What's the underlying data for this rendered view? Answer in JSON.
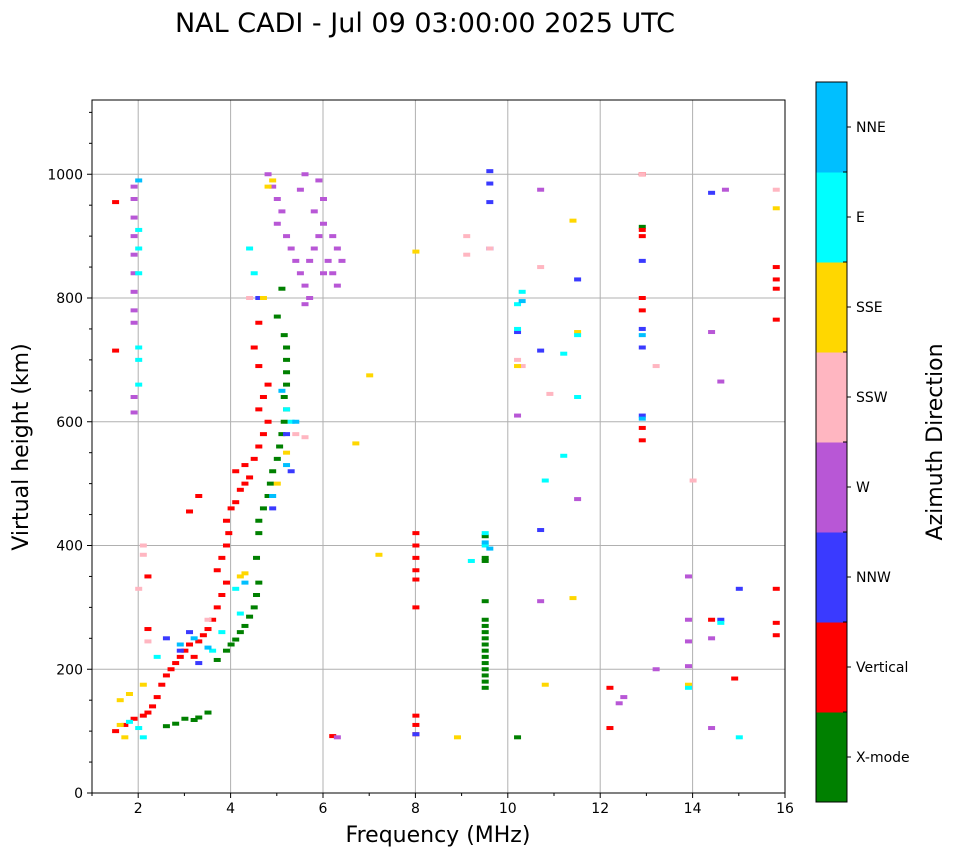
{
  "chart_data": {
    "type": "scatter",
    "title": "NAL CADI - Jul 09 03:00:00 2025 UTC",
    "xlabel": "Frequency (MHz)",
    "ylabel": "Virtual height (km)",
    "xlim": [
      1,
      16
    ],
    "ylim": [
      0,
      1120
    ],
    "xticks": [
      2,
      4,
      6,
      8,
      10,
      12,
      14,
      16
    ],
    "yticks": [
      0,
      200,
      400,
      600,
      800,
      1000
    ],
    "grid": true,
    "colorbar": {
      "label": "Azimuth Direction",
      "categories": [
        {
          "name": "X-mode",
          "color": "#008000"
        },
        {
          "name": "Vertical",
          "color": "#ff0000"
        },
        {
          "name": "NNW",
          "color": "#3a3aff"
        },
        {
          "name": "W",
          "color": "#b857d6"
        },
        {
          "name": "SSW",
          "color": "#ffb6c1"
        },
        {
          "name": "SSE",
          "color": "#ffd700"
        },
        {
          "name": "E",
          "color": "#00ffff"
        },
        {
          "name": "NNE",
          "color": "#00bfff"
        }
      ]
    },
    "series": [
      {
        "name": "X-mode",
        "points": [
          [
            3.2,
            118
          ],
          [
            3.3,
            122
          ],
          [
            3.5,
            130
          ],
          [
            3.7,
            215
          ],
          [
            3.9,
            230
          ],
          [
            4.0,
            240
          ],
          [
            4.1,
            248
          ],
          [
            4.2,
            260
          ],
          [
            4.3,
            270
          ],
          [
            4.4,
            285
          ],
          [
            4.5,
            300
          ],
          [
            4.55,
            320
          ],
          [
            4.6,
            340
          ],
          [
            4.55,
            380
          ],
          [
            4.6,
            420
          ],
          [
            4.6,
            440
          ],
          [
            4.7,
            460
          ],
          [
            4.8,
            480
          ],
          [
            4.85,
            500
          ],
          [
            4.9,
            520
          ],
          [
            5.0,
            540
          ],
          [
            5.05,
            560
          ],
          [
            5.1,
            580
          ],
          [
            5.15,
            600
          ],
          [
            5.2,
            620
          ],
          [
            5.15,
            640
          ],
          [
            5.2,
            660
          ],
          [
            5.2,
            680
          ],
          [
            5.2,
            700
          ],
          [
            5.2,
            720
          ],
          [
            5.15,
            740
          ],
          [
            5.0,
            770
          ],
          [
            5.1,
            815
          ],
          [
            12.9,
            915
          ],
          [
            9.5,
            170
          ],
          [
            9.5,
            180
          ],
          [
            9.5,
            190
          ],
          [
            9.5,
            200
          ],
          [
            9.5,
            210
          ],
          [
            9.5,
            220
          ],
          [
            9.5,
            230
          ],
          [
            9.5,
            240
          ],
          [
            9.5,
            250
          ],
          [
            9.5,
            260
          ],
          [
            9.5,
            270
          ],
          [
            9.5,
            280
          ],
          [
            9.5,
            310
          ],
          [
            9.5,
            375
          ],
          [
            9.5,
            380
          ],
          [
            9.5,
            415
          ],
          [
            10.2,
            90
          ],
          [
            3.0,
            120
          ],
          [
            2.8,
            112
          ],
          [
            2.6,
            108
          ]
        ]
      },
      {
        "name": "Vertical",
        "points": [
          [
            1.5,
            100
          ],
          [
            1.7,
            110
          ],
          [
            1.9,
            120
          ],
          [
            2.1,
            125
          ],
          [
            2.2,
            130
          ],
          [
            2.3,
            140
          ],
          [
            2.4,
            155
          ],
          [
            2.5,
            175
          ],
          [
            2.6,
            190
          ],
          [
            2.7,
            200
          ],
          [
            2.8,
            210
          ],
          [
            2.9,
            220
          ],
          [
            3.0,
            230
          ],
          [
            3.1,
            240
          ],
          [
            3.2,
            220
          ],
          [
            3.3,
            245
          ],
          [
            3.4,
            255
          ],
          [
            3.5,
            265
          ],
          [
            3.6,
            280
          ],
          [
            3.7,
            300
          ],
          [
            3.8,
            320
          ],
          [
            3.9,
            340
          ],
          [
            3.7,
            360
          ],
          [
            3.8,
            380
          ],
          [
            3.9,
            400
          ],
          [
            3.95,
            420
          ],
          [
            3.9,
            440
          ],
          [
            4.0,
            460
          ],
          [
            4.1,
            470
          ],
          [
            4.2,
            490
          ],
          [
            4.3,
            500
          ],
          [
            4.4,
            510
          ],
          [
            4.1,
            520
          ],
          [
            4.3,
            530
          ],
          [
            4.5,
            540
          ],
          [
            4.6,
            560
          ],
          [
            4.7,
            580
          ],
          [
            4.8,
            600
          ],
          [
            4.6,
            620
          ],
          [
            4.7,
            640
          ],
          [
            4.8,
            660
          ],
          [
            4.6,
            690
          ],
          [
            4.5,
            720
          ],
          [
            4.6,
            760
          ],
          [
            8.0,
            345
          ],
          [
            8.0,
            360
          ],
          [
            8.0,
            380
          ],
          [
            8.0,
            400
          ],
          [
            8.0,
            420
          ],
          [
            8.0,
            300
          ],
          [
            8.0,
            95
          ],
          [
            8.0,
            110
          ],
          [
            8.0,
            125
          ],
          [
            12.9,
            570
          ],
          [
            12.9,
            590
          ],
          [
            12.9,
            780
          ],
          [
            12.9,
            800
          ],
          [
            12.9,
            900
          ],
          [
            12.9,
            910
          ],
          [
            12.9,
            1000
          ],
          [
            12.2,
            105
          ],
          [
            12.2,
            170
          ],
          [
            14.4,
            280
          ],
          [
            14.9,
            185
          ],
          [
            15.8,
            255
          ],
          [
            15.8,
            275
          ],
          [
            15.8,
            330
          ],
          [
            15.8,
            765
          ],
          [
            15.8,
            815
          ],
          [
            15.8,
            830
          ],
          [
            15.8,
            850
          ],
          [
            6.2,
            92
          ],
          [
            1.5,
            955
          ],
          [
            1.5,
            715
          ],
          [
            3.1,
            455
          ],
          [
            3.3,
            480
          ],
          [
            2.2,
            350
          ],
          [
            2.2,
            265
          ]
        ]
      },
      {
        "name": "NNW",
        "points": [
          [
            2.6,
            250
          ],
          [
            2.9,
            230
          ],
          [
            3.1,
            260
          ],
          [
            3.3,
            210
          ],
          [
            4.6,
            800
          ],
          [
            4.9,
            460
          ],
          [
            5.3,
            520
          ],
          [
            5.2,
            580
          ],
          [
            9.6,
            1005
          ],
          [
            9.6,
            985
          ],
          [
            9.6,
            955
          ],
          [
            9.6,
            880
          ],
          [
            10.2,
            745
          ],
          [
            10.7,
            425
          ],
          [
            10.7,
            715
          ],
          [
            11.5,
            830
          ],
          [
            12.9,
            720
          ],
          [
            12.9,
            750
          ],
          [
            12.9,
            860
          ],
          [
            12.9,
            610
          ],
          [
            14.4,
            970
          ],
          [
            14.6,
            280
          ],
          [
            15.0,
            330
          ],
          [
            8.0,
            95
          ]
        ]
      },
      {
        "name": "W",
        "points": [
          [
            1.9,
            980
          ],
          [
            1.9,
            960
          ],
          [
            1.9,
            930
          ],
          [
            1.9,
            900
          ],
          [
            1.9,
            870
          ],
          [
            1.9,
            840
          ],
          [
            1.9,
            810
          ],
          [
            1.9,
            780
          ],
          [
            1.9,
            760
          ],
          [
            1.9,
            640
          ],
          [
            1.9,
            615
          ],
          [
            4.8,
            1000
          ],
          [
            4.9,
            980
          ],
          [
            5.0,
            960
          ],
          [
            5.1,
            940
          ],
          [
            5.0,
            920
          ],
          [
            5.2,
            900
          ],
          [
            5.3,
            880
          ],
          [
            5.4,
            860
          ],
          [
            5.5,
            840
          ],
          [
            5.6,
            820
          ],
          [
            5.7,
            800
          ],
          [
            5.8,
            880
          ],
          [
            5.9,
            900
          ],
          [
            6.0,
            920
          ],
          [
            6.1,
            860
          ],
          [
            6.2,
            840
          ],
          [
            6.3,
            820
          ],
          [
            6.0,
            960
          ],
          [
            5.9,
            990
          ],
          [
            5.6,
            1000
          ],
          [
            5.5,
            975
          ],
          [
            5.8,
            940
          ],
          [
            6.2,
            900
          ],
          [
            6.3,
            880
          ],
          [
            5.7,
            860
          ],
          [
            6.0,
            840
          ],
          [
            6.4,
            860
          ],
          [
            5.6,
            790
          ],
          [
            10.2,
            610
          ],
          [
            10.7,
            310
          ],
          [
            10.7,
            975
          ],
          [
            11.5,
            475
          ],
          [
            13.9,
            205
          ],
          [
            13.9,
            245
          ],
          [
            13.9,
            280
          ],
          [
            13.9,
            350
          ],
          [
            14.6,
            665
          ],
          [
            14.4,
            745
          ],
          [
            14.4,
            250
          ],
          [
            14.4,
            105
          ],
          [
            14.7,
            975
          ],
          [
            13.2,
            200
          ],
          [
            12.4,
            145
          ],
          [
            12.5,
            155
          ],
          [
            6.3,
            90
          ]
        ]
      },
      {
        "name": "SSW",
        "points": [
          [
            2.1,
            400
          ],
          [
            2.1,
            385
          ],
          [
            2.0,
            330
          ],
          [
            2.2,
            245
          ],
          [
            3.5,
            280
          ],
          [
            4.4,
            800
          ],
          [
            5.4,
            580
          ],
          [
            5.6,
            575
          ],
          [
            9.1,
            870
          ],
          [
            9.1,
            900
          ],
          [
            9.6,
            880
          ],
          [
            10.2,
            700
          ],
          [
            10.3,
            690
          ],
          [
            10.7,
            850
          ],
          [
            10.9,
            645
          ],
          [
            13.2,
            690
          ],
          [
            14.0,
            505
          ],
          [
            15.8,
            975
          ],
          [
            12.9,
            1000
          ]
        ]
      },
      {
        "name": "SSE",
        "points": [
          [
            1.6,
            110
          ],
          [
            1.7,
            90
          ],
          [
            1.6,
            150
          ],
          [
            1.8,
            160
          ],
          [
            2.1,
            175
          ],
          [
            4.2,
            350
          ],
          [
            4.3,
            355
          ],
          [
            4.7,
            800
          ],
          [
            4.8,
            980
          ],
          [
            4.9,
            990
          ],
          [
            5.2,
            550
          ],
          [
            5.0,
            500
          ],
          [
            6.7,
            565
          ],
          [
            7.0,
            675
          ],
          [
            7.2,
            385
          ],
          [
            8.0,
            875
          ],
          [
            8.9,
            90
          ],
          [
            10.2,
            690
          ],
          [
            10.8,
            175
          ],
          [
            11.4,
            315
          ],
          [
            11.4,
            925
          ],
          [
            11.5,
            745
          ],
          [
            13.9,
            175
          ],
          [
            15.8,
            945
          ]
        ]
      },
      {
        "name": "E",
        "points": [
          [
            1.8,
            115
          ],
          [
            2.0,
            105
          ],
          [
            2.1,
            90
          ],
          [
            2.4,
            220
          ],
          [
            3.6,
            230
          ],
          [
            3.8,
            260
          ],
          [
            4.1,
            330
          ],
          [
            4.2,
            290
          ],
          [
            4.4,
            880
          ],
          [
            4.5,
            840
          ],
          [
            5.2,
            620
          ],
          [
            5.3,
            600
          ],
          [
            9.5,
            420
          ],
          [
            9.5,
            400
          ],
          [
            9.2,
            375
          ],
          [
            10.2,
            790
          ],
          [
            10.3,
            810
          ],
          [
            10.2,
            750
          ],
          [
            10.8,
            505
          ],
          [
            11.2,
            545
          ],
          [
            11.2,
            710
          ],
          [
            11.5,
            640
          ],
          [
            11.5,
            740
          ],
          [
            13.9,
            170
          ],
          [
            14.6,
            275
          ],
          [
            15.0,
            90
          ],
          [
            2.0,
            910
          ],
          [
            2.0,
            880
          ],
          [
            2.0,
            840
          ],
          [
            2.0,
            720
          ],
          [
            2.0,
            700
          ],
          [
            2.0,
            660
          ]
        ]
      },
      {
        "name": "NNE",
        "points": [
          [
            2.9,
            240
          ],
          [
            3.2,
            250
          ],
          [
            3.5,
            235
          ],
          [
            4.3,
            340
          ],
          [
            4.9,
            480
          ],
          [
            5.1,
            650
          ],
          [
            5.2,
            530
          ],
          [
            5.4,
            600
          ],
          [
            9.6,
            395
          ],
          [
            9.5,
            405
          ],
          [
            12.9,
            605
          ],
          [
            12.9,
            740
          ],
          [
            10.3,
            795
          ],
          [
            2.0,
            990
          ]
        ]
      }
    ]
  }
}
